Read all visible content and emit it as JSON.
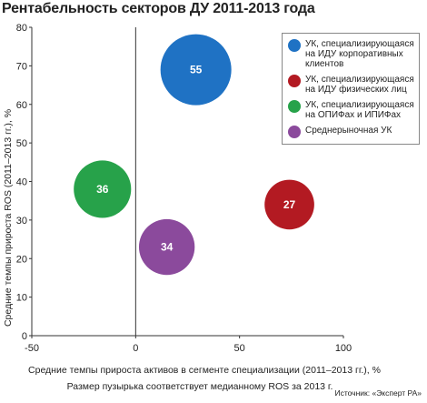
{
  "chart_data": {
    "type": "scatter",
    "title": "Рентабельность секторов ДУ 2011-2013 года",
    "xlabel": "Средние темпы прироста активов в сегменте специализации (2011–2013 гг.), %",
    "ylabel": "Средние темпы прироста ROS (2011–2013 гг.), %",
    "xlim": [
      -50,
      100
    ],
    "ylim": [
      0,
      80
    ],
    "xticks": [
      -50,
      0,
      50,
      100
    ],
    "yticks": [
      0,
      10,
      20,
      30,
      40,
      50,
      60,
      70,
      80
    ],
    "grid": false,
    "legend_position": "top-right",
    "series": [
      {
        "name": "УК, специализирующаяся на ИДУ корпоративных клиентов",
        "x": 29,
        "y": 69,
        "size": 55,
        "color": "#1f72c4"
      },
      {
        "name": "УК, специализирующаяся на ИДУ физических лиц",
        "x": 74,
        "y": 34,
        "size": 27,
        "color": "#b31a22"
      },
      {
        "name": "УК, специализирующаяся на ОПИФах и ИПИФах",
        "x": -16,
        "y": 38,
        "size": 36,
        "color": "#27a24a"
      },
      {
        "name": "Среднерыночная УК",
        "x": 15,
        "y": 23,
        "size": 34,
        "color": "#8b4a9c"
      }
    ],
    "note": "Размер пузырька соответствует медианному ROS за 2013 г.",
    "source": "Источник: «Эксперт РА»"
  }
}
